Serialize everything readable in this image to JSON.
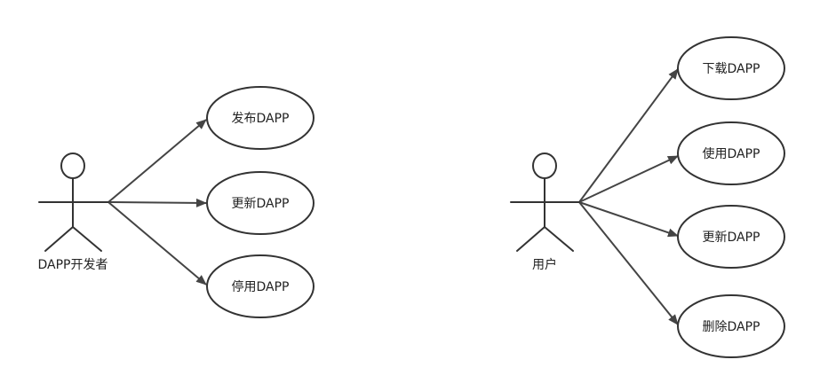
{
  "colors": {
    "stroke": "#333333",
    "arrow": "#444444",
    "background": "#ffffff",
    "text": "#222222"
  },
  "actors": [
    {
      "id": "developer",
      "label": "DAPP开发者",
      "use_cases": [
        {
          "id": "publish",
          "label": "发布DAPP"
        },
        {
          "id": "update",
          "label": "更新DAPP"
        },
        {
          "id": "disable",
          "label": "停用DAPP"
        }
      ]
    },
    {
      "id": "user",
      "label": "用户",
      "use_cases": [
        {
          "id": "download",
          "label": "下载DAPP"
        },
        {
          "id": "use",
          "label": "使用DAPP"
        },
        {
          "id": "update",
          "label": "更新DAPP"
        },
        {
          "id": "delete",
          "label": "删除DAPP"
        }
      ]
    }
  ]
}
